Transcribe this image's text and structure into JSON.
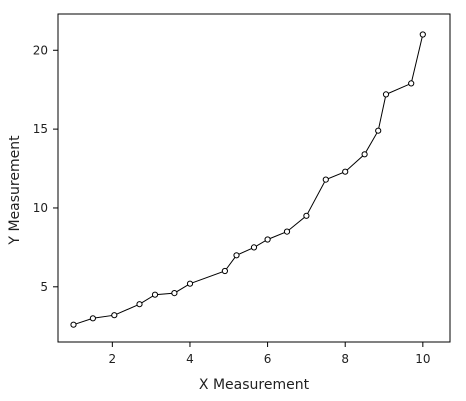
{
  "chart_data": {
    "type": "line",
    "title": "",
    "xlabel": "X Measurement",
    "ylabel": "Y Measurement",
    "xlim": [
      0.6,
      10.7
    ],
    "ylim": [
      1.5,
      22.3
    ],
    "x_ticks": [
      2,
      4,
      6,
      8,
      10
    ],
    "y_ticks": [
      5,
      10,
      15,
      20
    ],
    "grid": false,
    "legend": "none",
    "marker": "open-circle",
    "line_color": "#000000",
    "series": [
      {
        "x": [
          1.0,
          1.5,
          2.05,
          2.7,
          3.1,
          3.6,
          4.0,
          4.9,
          5.2,
          5.65,
          6.0,
          6.5,
          7.0,
          7.5,
          8.0,
          8.5,
          8.85,
          9.05,
          9.7,
          10.0
        ],
        "y": [
          2.6,
          3.0,
          3.2,
          3.9,
          4.5,
          4.6,
          5.2,
          6.0,
          7.0,
          7.5,
          8.0,
          8.5,
          9.5,
          11.8,
          12.3,
          13.4,
          14.9,
          17.2,
          17.9,
          21.0
        ]
      }
    ]
  }
}
